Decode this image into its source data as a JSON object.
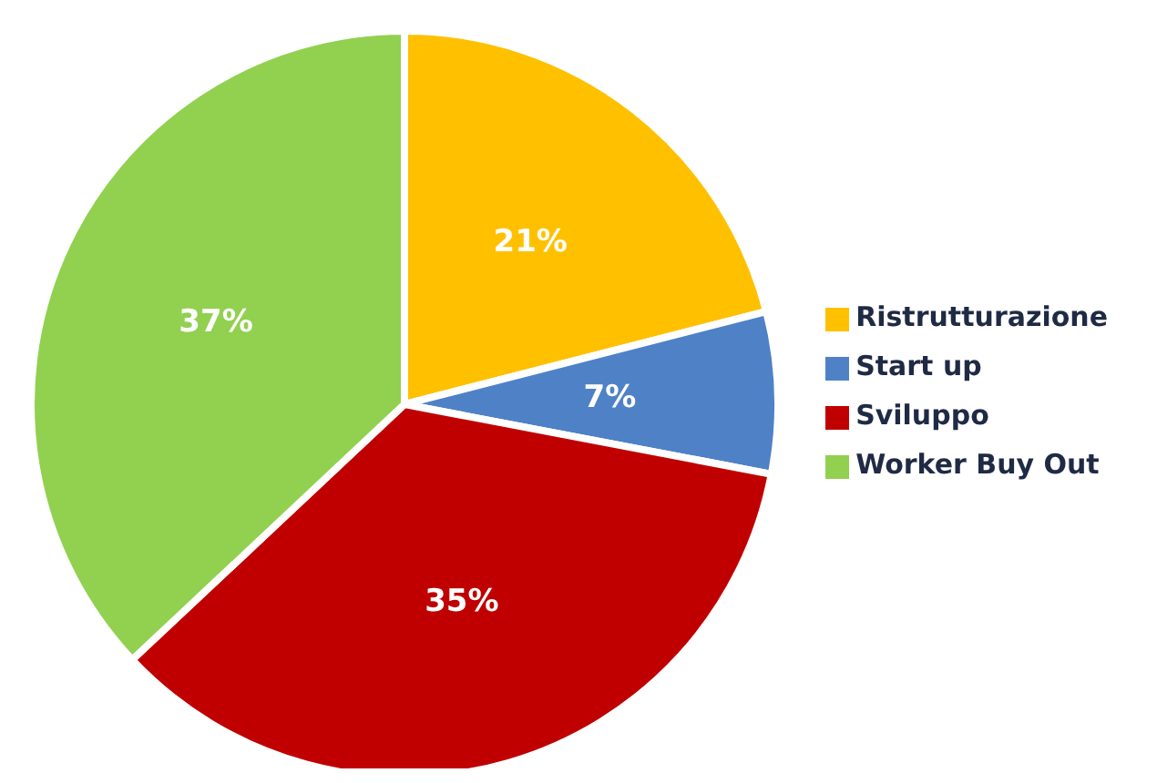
{
  "chart_data": {
    "type": "pie",
    "categories": [
      "Ristrutturazione",
      "Start up",
      "Sviluppo",
      "Worker Buy Out"
    ],
    "values": [
      21,
      7,
      35,
      37
    ],
    "value_labels": [
      "21%",
      "7%",
      "35%",
      "37%"
    ],
    "colors": [
      "#ffc000",
      "#4f81c7",
      "#c00000",
      "#92d050"
    ],
    "legend": "right"
  }
}
